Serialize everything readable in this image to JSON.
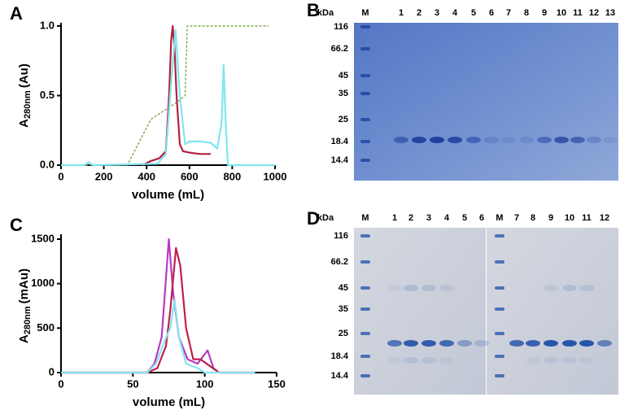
{
  "chart_data": [
    {
      "type": "line",
      "label": "A",
      "xlabel": "volume (mL)",
      "ylabel": {
        "main": "A",
        "sub": "280nm",
        "unit": "(Au)"
      },
      "xlim": [
        0,
        1000
      ],
      "xticks": [
        0,
        200,
        400,
        600,
        800,
        1000
      ],
      "ylim": [
        0,
        1
      ],
      "yticks": [
        {
          "value": 0,
          "label": "0.0"
        },
        0.5,
        {
          "value": 1,
          "label": "1.0"
        }
      ],
      "series": [
        {
          "color": "#6b9a2c",
          "dash": true,
          "x": [
            0,
            310,
            420,
            470,
            540,
            580,
            590,
            970
          ],
          "values": [
            0,
            0,
            0.33,
            0.38,
            0.45,
            0.5,
            1.0,
            1.0
          ]
        },
        {
          "color": "#b3203c",
          "x": [
            380,
            420,
            460,
            490,
            505,
            515,
            522,
            530,
            540,
            555,
            570,
            600,
            650,
            700
          ],
          "values": [
            0,
            0.03,
            0.05,
            0.1,
            0.5,
            0.9,
            1.0,
            0.85,
            0.5,
            0.15,
            0.1,
            0.09,
            0.08,
            0.08
          ]
        },
        {
          "color": "#7fe6ef",
          "x": [
            0,
            110,
            130,
            150,
            450,
            490,
            515,
            535,
            555,
            580,
            600,
            650,
            700,
            730,
            750,
            760,
            770,
            780,
            1000
          ],
          "values": [
            0,
            0,
            0.02,
            0,
            0.01,
            0.08,
            0.6,
            0.97,
            0.5,
            0.15,
            0.17,
            0.17,
            0.16,
            0.12,
            0.3,
            0.72,
            0.3,
            0,
            0
          ]
        }
      ]
    },
    {
      "type": "line",
      "label": "C",
      "xlabel": "volume (mL)",
      "ylabel": {
        "main": "A",
        "sub": "280nm",
        "unit": "(mAu)"
      },
      "xlim": [
        0,
        150
      ],
      "xticks": [
        0,
        50,
        100,
        150
      ],
      "ylim": [
        0,
        1500
      ],
      "yticks": [
        0,
        500,
        1000,
        1500
      ],
      "series": [
        {
          "color": "#b63ac6",
          "x": [
            0,
            60,
            65,
            70,
            75,
            78,
            82,
            88,
            95,
            102,
            106,
            110,
            135
          ],
          "values": [
            0,
            0,
            100,
            400,
            1500,
            900,
            400,
            150,
            100,
            250,
            50,
            0,
            0
          ]
        },
        {
          "color": "#c0204a",
          "x": [
            0,
            60,
            67,
            73,
            76,
            80,
            83,
            87,
            92,
            97,
            103,
            110,
            135
          ],
          "values": [
            0,
            0,
            50,
            300,
            700,
            1400,
            1200,
            500,
            150,
            150,
            80,
            0,
            0
          ]
        },
        {
          "color": "#86e4ee",
          "x": [
            0,
            60,
            66,
            72,
            76,
            79,
            82,
            87,
            95,
            100,
            135
          ],
          "values": [
            0,
            0,
            100,
            350,
            500,
            820,
            400,
            100,
            50,
            0,
            0
          ]
        }
      ]
    }
  ],
  "gels": [
    {
      "label": "B",
      "unit": "kDa",
      "markers": [
        116,
        66.2,
        45,
        35,
        25,
        18.4,
        14.4
      ],
      "lanes": [
        "M",
        "1",
        "2",
        "3",
        "4",
        "5",
        "6",
        "7",
        "8",
        "9",
        "10",
        "11",
        "12",
        "13"
      ]
    },
    {
      "label": "D",
      "unit": "kDa",
      "markers": [
        116,
        66.2,
        45,
        35,
        25,
        18.4,
        14.4
      ],
      "lanes": [
        "M",
        "1",
        "2",
        "3",
        "4",
        "5",
        "6",
        "M",
        "7",
        "8",
        "9",
        "10",
        "11",
        "12"
      ]
    }
  ]
}
